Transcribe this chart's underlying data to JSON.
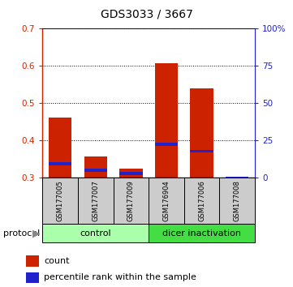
{
  "title": "GDS3033 / 3667",
  "samples": [
    "GSM177005",
    "GSM177007",
    "GSM177009",
    "GSM176904",
    "GSM177006",
    "GSM177008"
  ],
  "groups": [
    "control",
    "control",
    "control",
    "dicer inactivation",
    "dicer inactivation",
    "dicer inactivation"
  ],
  "count_values": [
    0.461,
    0.358,
    0.325,
    0.607,
    0.54,
    0.3
  ],
  "percentile_values": [
    0.338,
    0.32,
    0.312,
    0.39,
    0.372,
    0.3
  ],
  "bar_bottom": 0.3,
  "ylim_left": [
    0.3,
    0.7
  ],
  "ylim_right": [
    0,
    100
  ],
  "yticks_left": [
    0.3,
    0.4,
    0.5,
    0.6,
    0.7
  ],
  "yticks_right": [
    0,
    25,
    50,
    75,
    100
  ],
  "yticklabels_left": [
    "0.3",
    "0.4",
    "0.5",
    "0.6",
    "0.7"
  ],
  "yticklabels_right": [
    "0",
    "25",
    "50",
    "75",
    "100%"
  ],
  "red_color": "#cc2200",
  "blue_color": "#2222cc",
  "control_color": "#aaffaa",
  "dicer_color": "#44dd44",
  "sample_bg_color": "#cccccc",
  "protocol_label": "protocol",
  "legend_count": "count",
  "legend_pct": "percentile rank within the sample",
  "bar_width": 0.65,
  "blue_bar_height": 0.008
}
